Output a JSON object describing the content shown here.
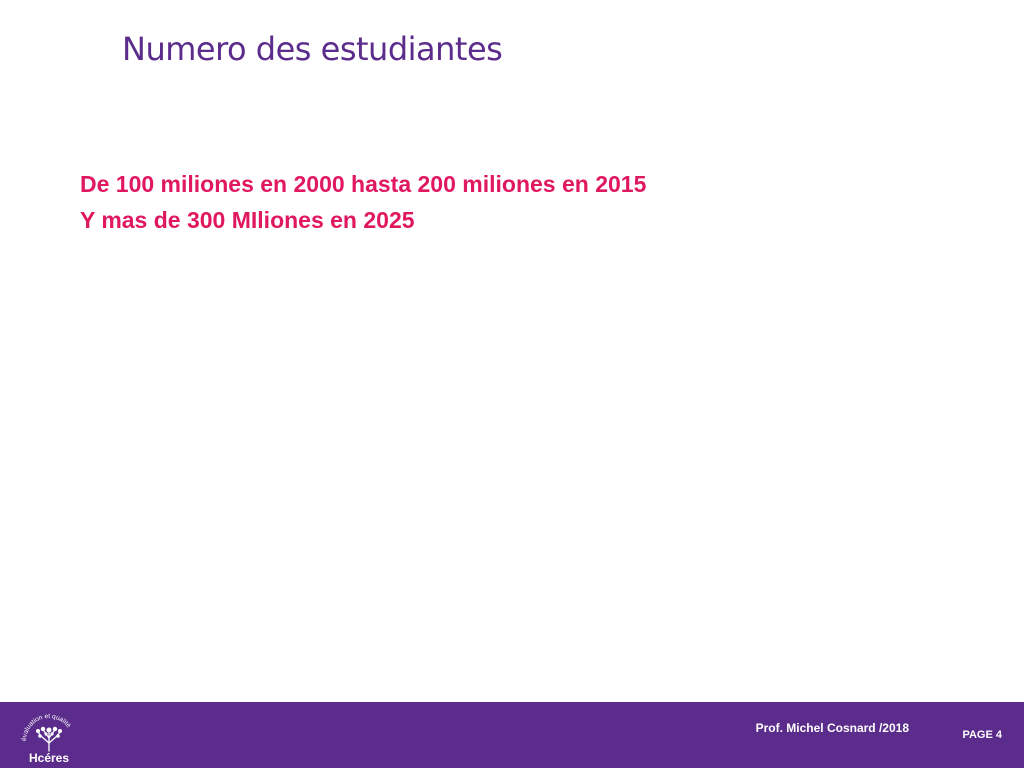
{
  "slide": {
    "title": "Numero des estudiantes",
    "lines": [
      "De 100 miliones en 2000 hasta 200 miliones en 2015",
      "Y mas de 300 MIliones en 2025"
    ]
  },
  "footer": {
    "logo_arc_text": "évaluation et qualité",
    "logo_word": "Hcéres",
    "author": "Prof. Michel Cosnard /2018",
    "page": "PAGE 4"
  },
  "colors": {
    "title": "#5b2c8c",
    "body": "#e0185f",
    "footer_bg": "#5b2c8c",
    "footer_text": "#ffffff"
  }
}
